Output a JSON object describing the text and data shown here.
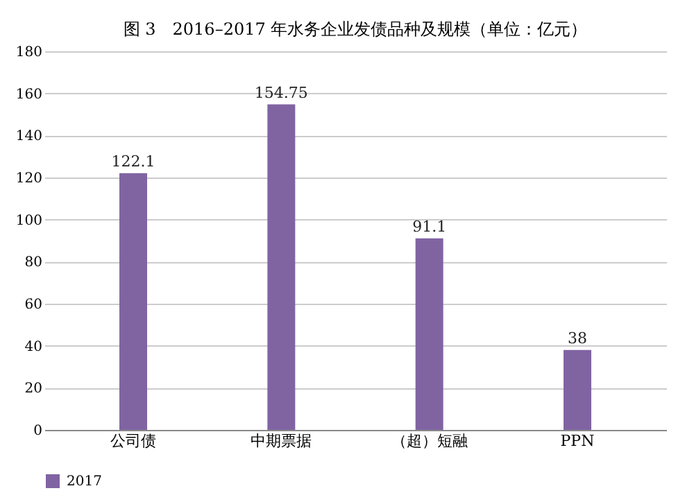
{
  "chart_data": {
    "type": "bar",
    "title": "图 3　2016–2017 年水务企业发债品种及规模（单位：亿元）",
    "categories": [
      "公司债",
      "中期票据",
      "（超）短融",
      "PPN"
    ],
    "series": [
      {
        "name": "2017",
        "color": "#8064a2",
        "values": [
          122.1,
          154.75,
          91.1,
          38
        ]
      }
    ],
    "ylim": [
      0,
      180
    ],
    "yticks": [
      0,
      20,
      40,
      60,
      80,
      100,
      120,
      140,
      160,
      180
    ],
    "grid": "y",
    "legend": "bottom",
    "data_labels": true
  }
}
